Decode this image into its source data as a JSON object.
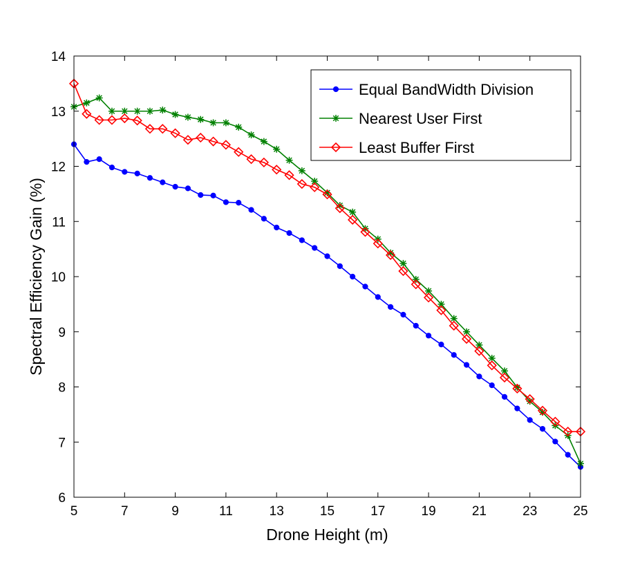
{
  "chart_data": {
    "type": "line",
    "xlabel": "Drone Height (m)",
    "ylabel": "Spectral Efficiency Gain (%)",
    "xlim": [
      5,
      25
    ],
    "ylim": [
      6,
      14
    ],
    "xticks": [
      5,
      7,
      9,
      11,
      13,
      15,
      17,
      19,
      21,
      23,
      25
    ],
    "yticks": [
      6,
      7,
      8,
      9,
      10,
      11,
      12,
      13,
      14
    ],
    "grid": false,
    "legend_position": "top-right",
    "x": [
      5,
      5.5,
      6,
      6.5,
      7,
      7.5,
      8,
      8.5,
      9,
      9.5,
      10,
      10.5,
      11,
      11.5,
      12,
      12.5,
      13,
      13.5,
      14,
      14.5,
      15,
      15.5,
      16,
      16.5,
      17,
      17.5,
      18,
      18.5,
      19,
      19.5,
      20,
      20.5,
      21,
      21.5,
      22,
      22.5,
      23,
      23.5,
      24,
      24.5,
      25
    ],
    "series": [
      {
        "name": "Equal BandWidth Division",
        "color": "#0000ff",
        "marker": "dot",
        "values": [
          12.4,
          12.08,
          12.13,
          11.98,
          11.9,
          11.87,
          11.79,
          11.71,
          11.63,
          11.6,
          11.48,
          11.47,
          11.35,
          11.34,
          11.21,
          11.05,
          10.89,
          10.79,
          10.66,
          10.52,
          10.37,
          10.19,
          10.0,
          9.82,
          9.63,
          9.45,
          9.31,
          9.11,
          8.93,
          8.77,
          8.58,
          8.4,
          8.19,
          8.03,
          7.82,
          7.61,
          7.4,
          7.24,
          7.01,
          6.77,
          6.55
        ]
      },
      {
        "name": "Nearest User First",
        "color": "#008000",
        "marker": "star",
        "values": [
          13.08,
          13.15,
          13.24,
          13.0,
          13.0,
          13.0,
          13.0,
          13.02,
          12.94,
          12.89,
          12.85,
          12.79,
          12.79,
          12.71,
          12.57,
          12.45,
          12.31,
          12.11,
          11.92,
          11.73,
          11.52,
          11.29,
          11.17,
          10.87,
          10.68,
          10.43,
          10.24,
          9.95,
          9.74,
          9.5,
          9.24,
          9.0,
          8.76,
          8.52,
          8.29,
          7.99,
          7.74,
          7.54,
          7.3,
          7.12,
          6.61
        ]
      },
      {
        "name": "Least Buffer First",
        "color": "#ff0000",
        "marker": "diamond",
        "values": [
          13.5,
          12.95,
          12.84,
          12.84,
          12.87,
          12.83,
          12.68,
          12.68,
          12.6,
          12.48,
          12.52,
          12.45,
          12.39,
          12.26,
          12.13,
          12.07,
          11.94,
          11.84,
          11.68,
          11.62,
          11.49,
          11.24,
          11.03,
          10.81,
          10.6,
          10.39,
          10.1,
          9.86,
          9.62,
          9.39,
          9.11,
          8.87,
          8.65,
          8.39,
          8.17,
          7.97,
          7.78,
          7.57,
          7.37,
          7.19,
          7.19
        ]
      }
    ]
  }
}
